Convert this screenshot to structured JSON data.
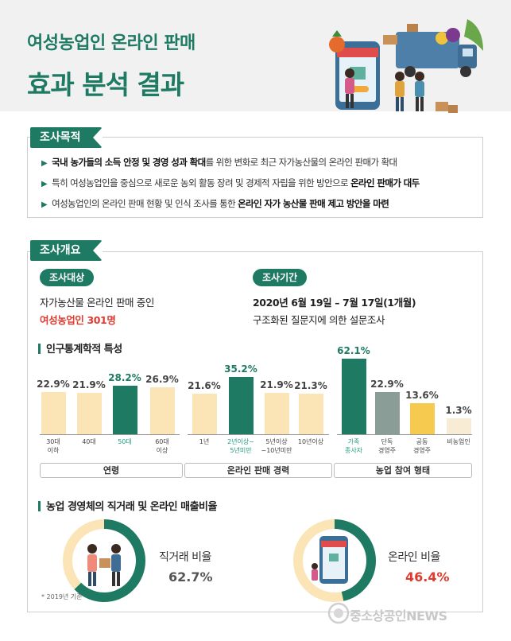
{
  "header": {
    "title_line1": "여성농업인 온라인 판매",
    "title_line2": "효과 분석 결과"
  },
  "purpose": {
    "tag": "조사목적",
    "lines": [
      {
        "pre": "",
        "bold": "국내 농가들의 소득 안정 및 경영 성과 확대",
        "post": "를 위한 변화로 최근 자가농산물의 온라인 판매가 확대"
      },
      {
        "pre": "특히 여성농업인을 중심으로 새로운 농외 활동 장려 및 경제적 자립을 위한 방안으로 ",
        "bold": "온라인 판매가 대두",
        "post": ""
      },
      {
        "pre": "여성농업인의 온라인 판매 현황 및 인식 조사를 통한 ",
        "bold": "온라인 자가 농산물 판매 제고 방안을 마련",
        "post": ""
      }
    ]
  },
  "overview": {
    "tag": "조사개요",
    "target_label": "조사대상",
    "target_line1": "자가농산물 온라인 판매 중인",
    "target_line2": "여성농업인 301명",
    "period_label": "조사기간",
    "period_line1": "2020년 6월 19일 – 7월 17일(1개월)",
    "period_line2": "구조화된 질문지에 의한 설문조사"
  },
  "demographics": {
    "heading": "인구통계학적 특성",
    "groups": [
      "연령",
      "온라인 판매 경력",
      "농업 참여 형태"
    ]
  },
  "chart_data": {
    "type": "bar",
    "categories": [
      "30대\n이하",
      "40대",
      "50대",
      "60대\n이상",
      "1년",
      "2년이상~\n5년미만",
      "5년이상\n~10년미만",
      "10년이상",
      "가족\n종사자",
      "단독\n경영주",
      "공동\n경영주",
      "비농업인"
    ],
    "value_labels": [
      "22.9%",
      "21.9%",
      "28.2%",
      "26.9%",
      "21.6%",
      "35.2%",
      "21.9%",
      "21.3%",
      "62.1%",
      "22.9%",
      "13.6%",
      "1.3%"
    ],
    "values": [
      22.9,
      21.9,
      28.2,
      26.9,
      21.6,
      35.2,
      21.9,
      21.3,
      62.1,
      22.9,
      13.6,
      1.3
    ],
    "highlight": [
      false,
      false,
      true,
      false,
      false,
      true,
      false,
      false,
      true,
      false,
      false,
      false
    ],
    "colors": {
      "light": "#fbe4b6",
      "dark": "#1f7a63",
      "gray": "#8a9d96",
      "yellow": "#f6c94f",
      "beige": "#f8edd4"
    },
    "bar_colors": [
      "light",
      "light",
      "dark",
      "light",
      "light",
      "dark",
      "light",
      "light",
      "dark",
      "gray",
      "yellow",
      "beige"
    ]
  },
  "sales": {
    "heading": "농업 경영체의 직거래 및 온라인 매출비율",
    "direct_label": "직거래 비율",
    "direct_value": "62.7%",
    "online_label": "온라인 비율",
    "online_value": "46.4%",
    "direct_pct": 62.7,
    "online_pct": 46.4,
    "note": "* 2019년 기준"
  },
  "watermark": "중소상공인NEWS",
  "colors": {
    "accent": "#1f7a63",
    "red": "#e03a2f"
  }
}
